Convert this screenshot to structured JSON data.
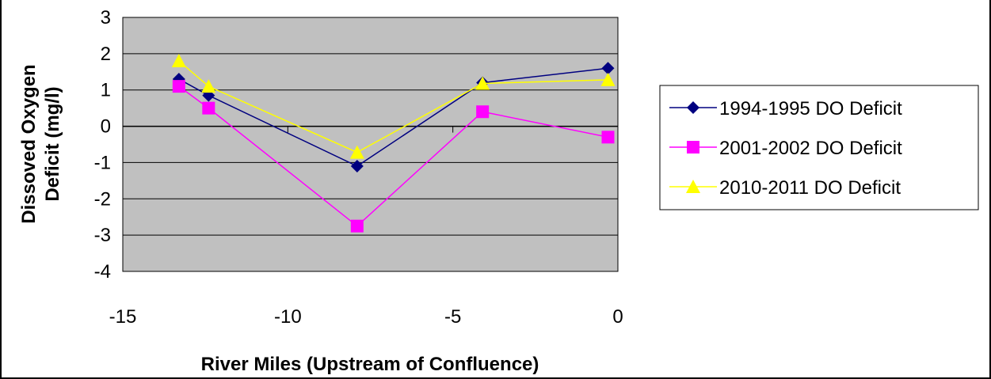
{
  "chart_data": {
    "type": "line",
    "title": "",
    "xlabel": "River Miles (Upstream of Confluence)",
    "ylabel": "Dissoved Oxygen Deficit  (mg/l)",
    "xlim": [
      -15,
      0
    ],
    "ylim": [
      -4,
      3
    ],
    "xticks": [
      -15,
      -10,
      -5,
      0
    ],
    "yticks": [
      -4,
      -3,
      -2,
      -1,
      0,
      1,
      2,
      3
    ],
    "x_tick_labels": [
      "-15",
      "-10",
      "-5",
      "0"
    ],
    "y_tick_labels": [
      "-4",
      "-3",
      "-2",
      "-1",
      "0",
      "1",
      "2",
      "3"
    ],
    "grid": "horizontal major gridlines",
    "plot_background": "#c0c0c0",
    "legend_position": "right",
    "series": [
      {
        "name": "1994-1995 DO Deficit",
        "color": "#000080",
        "marker": "diamond",
        "x": [
          -13.3,
          -12.4,
          -7.9,
          -4.1,
          -0.3
        ],
        "y": [
          1.3,
          0.85,
          -1.1,
          1.2,
          1.6
        ]
      },
      {
        "name": "2001-2002 DO Deficit",
        "color": "#ff00ff",
        "marker": "square",
        "x": [
          -13.3,
          -12.4,
          -7.9,
          -4.1,
          -0.3
        ],
        "y": [
          1.1,
          0.5,
          -2.75,
          0.4,
          -0.3
        ]
      },
      {
        "name": "2010-2011 DO Deficit",
        "color": "#ffff00",
        "marker": "triangle",
        "x": [
          -13.3,
          -12.4,
          -7.9,
          -4.1,
          -0.3
        ],
        "y": [
          1.8,
          1.1,
          -0.72,
          1.18,
          1.28
        ]
      }
    ]
  }
}
